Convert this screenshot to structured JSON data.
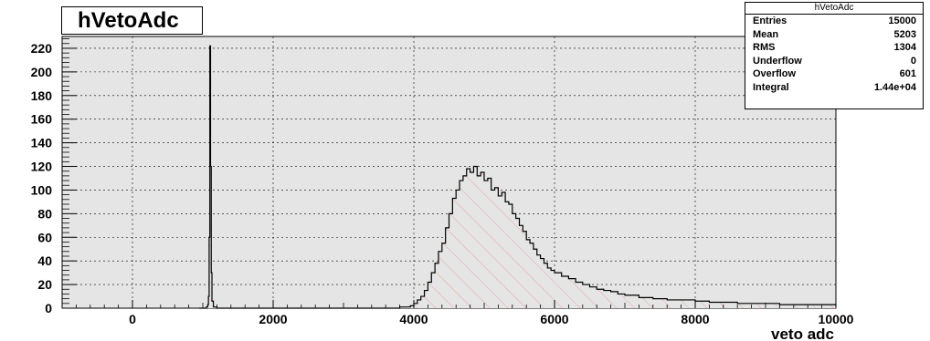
{
  "chart_data": {
    "type": "histogram",
    "title": "hVetoAdc",
    "xlabel": "veto adc",
    "ylabel": "",
    "xlim": [
      -1000,
      10000
    ],
    "ylim": [
      0,
      230
    ],
    "xticks": [
      0,
      2000,
      4000,
      6000,
      8000,
      10000
    ],
    "yticks": [
      0,
      20,
      40,
      60,
      80,
      100,
      120,
      140,
      160,
      180,
      200,
      220
    ],
    "grid": true,
    "fill": "hatched pink",
    "series": [
      {
        "x": [
          950,
          1000,
          1050,
          1070,
          1080,
          1090,
          1100,
          1110,
          1120,
          1130,
          1150,
          1200,
          1500,
          2000,
          2500,
          3000,
          3500,
          3700,
          3800,
          3900,
          3950,
          4000,
          4050,
          4100,
          4150,
          4200,
          4250,
          4300,
          4350,
          4400,
          4450,
          4500,
          4550,
          4600,
          4650,
          4700,
          4750,
          4800,
          4850,
          4900,
          4950,
          5000,
          5050,
          5100,
          5150,
          5200,
          5250,
          5300,
          5350,
          5400,
          5450,
          5500,
          5550,
          5600,
          5650,
          5700,
          5750,
          5800,
          5850,
          5900,
          5950,
          6000,
          6100,
          6200,
          6300,
          6400,
          6500,
          6600,
          6700,
          6800,
          6900,
          7000,
          7200,
          7400,
          7600,
          7800,
          8000,
          8200,
          8400,
          8600,
          8800,
          9000,
          9200,
          9400,
          9600,
          9800,
          10000
        ],
        "y": [
          0,
          0,
          1,
          3,
          10,
          60,
          222,
          120,
          30,
          6,
          1,
          0,
          0,
          0,
          0,
          0,
          0,
          0,
          1,
          1,
          2,
          4,
          7,
          10,
          15,
          22,
          30,
          38,
          48,
          55,
          68,
          80,
          93,
          100,
          108,
          112,
          118,
          115,
          120,
          112,
          115,
          108,
          110,
          100,
          102,
          95,
          98,
          90,
          88,
          80,
          76,
          70,
          65,
          58,
          55,
          50,
          45,
          42,
          38,
          34,
          32,
          30,
          27,
          25,
          22,
          20,
          18,
          16,
          15,
          14,
          12,
          11,
          9,
          8,
          7,
          7,
          6,
          5,
          5,
          4,
          4,
          4,
          3,
          3,
          3,
          3,
          2
        ]
      }
    ]
  },
  "stats": {
    "title": "hVetoAdc",
    "rows": [
      {
        "label": "Entries",
        "value": "15000"
      },
      {
        "label": "Mean",
        "value": "5203"
      },
      {
        "label": "RMS",
        "value": "1304"
      },
      {
        "label": "Underflow",
        "value": "0"
      },
      {
        "label": "Overflow",
        "value": "601"
      },
      {
        "label": "Integral",
        "value": "1.44e+04"
      }
    ]
  }
}
